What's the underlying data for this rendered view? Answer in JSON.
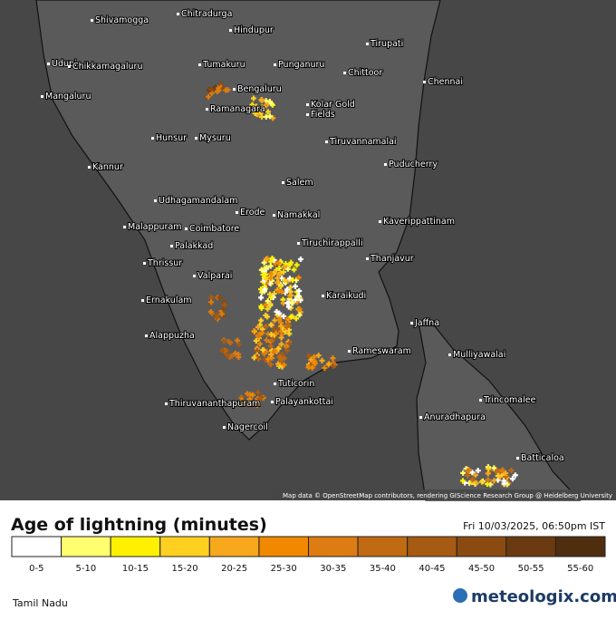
{
  "map": {
    "places": [
      "Shivamogga",
      "Chitradurga",
      "Hindupur",
      "Tirupati",
      "Udupi",
      "Chikkamagaluru",
      "Tumakuru",
      "Punganuru",
      "Chittoor",
      "Chennai",
      "Bengaluru",
      "Mangaluru",
      "Ramanagara",
      "Kolar Gold",
      "Fields",
      "Hunsur",
      "Mysuru",
      "Tiruvannamalai",
      "Kannur",
      "Puducherry",
      "Salem",
      "Udhagamandalam",
      "Erode",
      "Namakkal",
      "Kaverippattinam",
      "Malappuram",
      "Coimbatore",
      "Tiruchirappalli",
      "Palakkad",
      "Thanjavur",
      "Thrissur",
      "Valparai",
      "Karaikudi",
      "Ernakulam",
      "Jaffna",
      "Alappuzha",
      "Mulliyawalai",
      "Rameswaram",
      "Tuticorin",
      "Trincomalee",
      "Thiruvananthapuram",
      "Palayankottai",
      "Anuradhapura",
      "Nagercoil",
      "Batticaloa"
    ],
    "attribution": "Map data © OpenStreetMap contributors, rendering GIScience Research Group @ Heidelberg University"
  },
  "legend": {
    "title": "Age of lightning (minutes)",
    "timestamp": "Fri 10/03/2025, 06:50pm IST",
    "items": [
      {
        "label": "0-5",
        "color": "#ffffff"
      },
      {
        "label": "5-10",
        "color": "#ffff70"
      },
      {
        "label": "10-15",
        "color": "#fff000"
      },
      {
        "label": "15-20",
        "color": "#ffd020"
      },
      {
        "label": "20-25",
        "color": "#f7a81c"
      },
      {
        "label": "25-30",
        "color": "#f08800"
      },
      {
        "label": "30-35",
        "color": "#dc7c12"
      },
      {
        "label": "35-40",
        "color": "#c06a12"
      },
      {
        "label": "40-45",
        "color": "#a65a12"
      },
      {
        "label": "45-50",
        "color": "#8a4a10"
      },
      {
        "label": "50-55",
        "color": "#6c3a10"
      },
      {
        "label": "55-60",
        "color": "#4f2e10"
      }
    ]
  },
  "footer": {
    "region": "Tamil Nadu",
    "brand": "meteologix.com"
  }
}
